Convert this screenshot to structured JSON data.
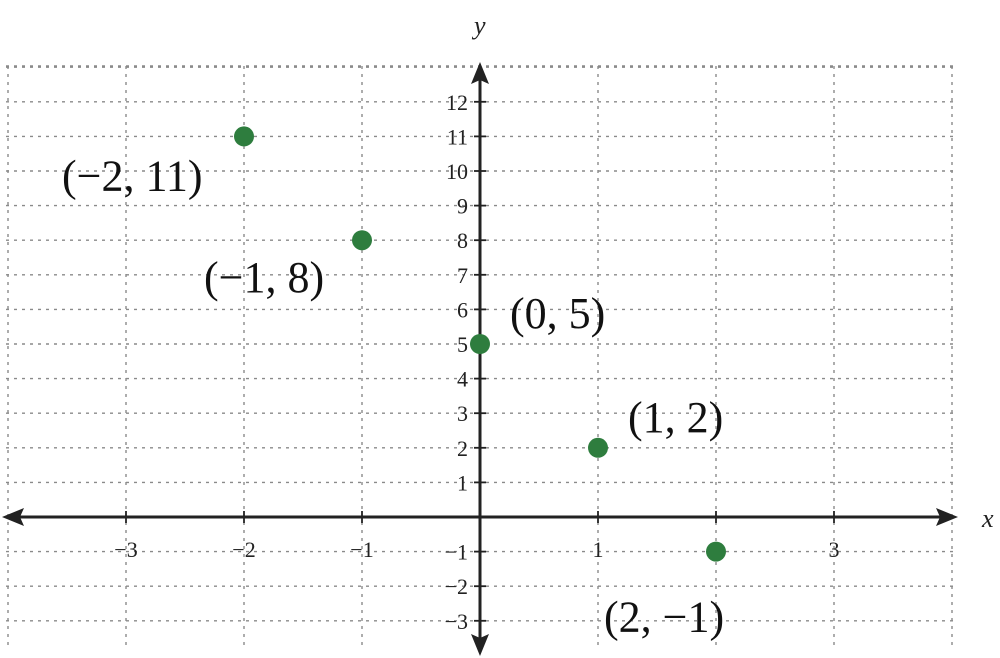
{
  "chart_data": {
    "type": "scatter",
    "xlabel": "y",
    "xaxis_label": "x",
    "yaxis_label": "y",
    "xlim": [
      -4,
      4
    ],
    "ylim": [
      -4,
      13
    ],
    "grid": true,
    "x_ticks": [
      -3,
      -2,
      -1,
      1,
      2,
      3
    ],
    "x_tick_labels": [
      "−3",
      "−2",
      "−1",
      "1",
      "2",
      "3"
    ],
    "y_ticks": [
      -3,
      -2,
      -1,
      1,
      2,
      3,
      4,
      5,
      6,
      7,
      8,
      9,
      10,
      11,
      12
    ],
    "y_tick_labels": [
      "−3",
      "−2",
      "−1",
      "1",
      "2",
      "3",
      "4",
      "5",
      "6",
      "7",
      "8",
      "9",
      "10",
      "11",
      "12"
    ],
    "point_color": "#2e7d3e",
    "points": [
      {
        "x": -2,
        "y": 11,
        "label": "(−2, 11)"
      },
      {
        "x": -1,
        "y": 8,
        "label": "(−1, 8)"
      },
      {
        "x": 0,
        "y": 5,
        "label": "(0, 5)"
      },
      {
        "x": 1,
        "y": 2,
        "label": "(1, 2)"
      },
      {
        "x": 2,
        "y": -1,
        "label": "(2, −1)"
      }
    ]
  }
}
